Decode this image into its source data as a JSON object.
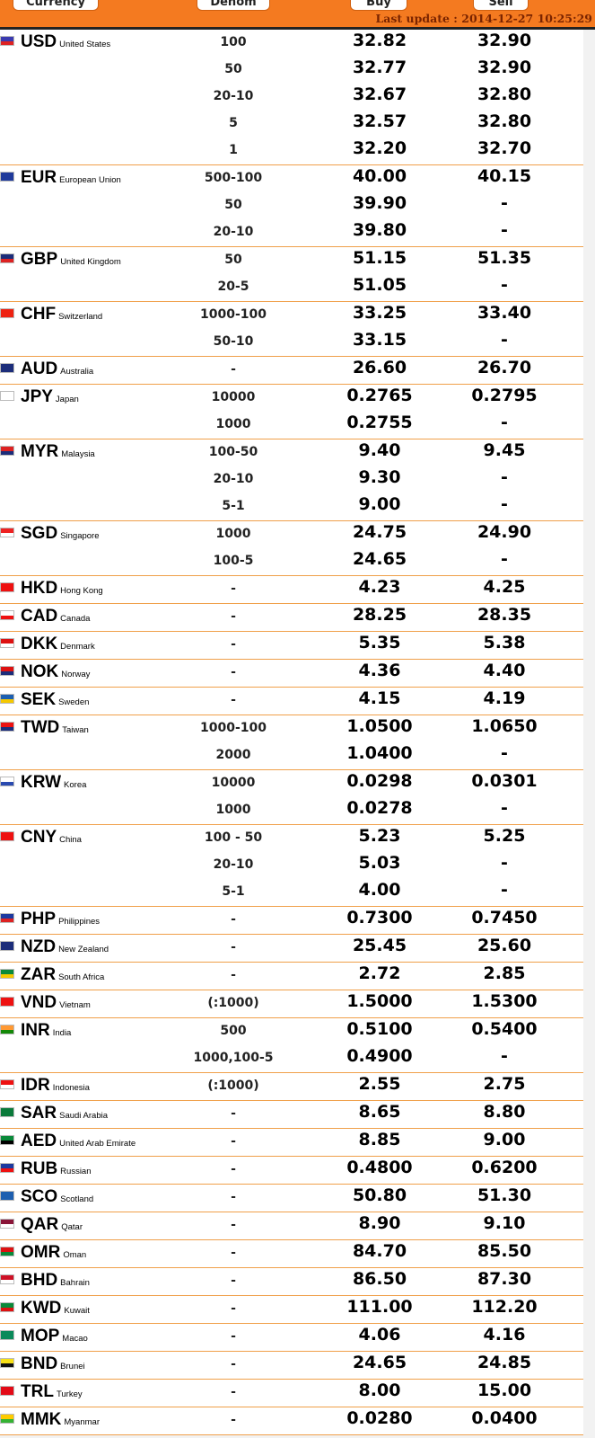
{
  "header": {
    "col_currency": "Currency",
    "col_denom": "Denom",
    "col_buy": "Buy",
    "col_sell": "Sell",
    "last_update": "Last update : 2014-12-27 10:25:29"
  },
  "groups": [
    {
      "code": "USD",
      "country": "United States",
      "flag": {
        "icon": "us-flag-icon",
        "bg": "#3b3bb0",
        "stripe": "#d22"
      },
      "rows": [
        {
          "denom": "100",
          "buy": "32.82",
          "sell": "32.90"
        },
        {
          "denom": "50",
          "buy": "32.77",
          "sell": "32.90"
        },
        {
          "denom": "20-10",
          "buy": "32.67",
          "sell": "32.80"
        },
        {
          "denom": "5",
          "buy": "32.57",
          "sell": "32.80"
        },
        {
          "denom": "1",
          "buy": "32.20",
          "sell": "32.70"
        }
      ]
    },
    {
      "code": "EUR",
      "country": "European Union",
      "flag": {
        "icon": "eu-flag-icon",
        "bg": "#1f3a9b",
        "stripe": "#1f3a9b"
      },
      "rows": [
        {
          "denom": "500-100",
          "buy": "40.00",
          "sell": "40.15"
        },
        {
          "denom": "50",
          "buy": "39.90",
          "sell": "-"
        },
        {
          "denom": "20-10",
          "buy": "39.80",
          "sell": "-"
        }
      ]
    },
    {
      "code": "GBP",
      "country": "United Kingdom",
      "flag": {
        "icon": "uk-flag-icon",
        "bg": "#1c2d7a",
        "stripe": "#d22"
      },
      "rows": [
        {
          "denom": "50",
          "buy": "51.15",
          "sell": "51.35"
        },
        {
          "denom": "20-5",
          "buy": "51.05",
          "sell": "-"
        }
      ]
    },
    {
      "code": "CHF",
      "country": "Switzerland",
      "flag": {
        "icon": "swiss-flag-icon",
        "bg": "#e21",
        "stripe": "#e21"
      },
      "rows": [
        {
          "denom": "1000-100",
          "buy": "33.25",
          "sell": "33.40"
        },
        {
          "denom": "50-10",
          "buy": "33.15",
          "sell": "-"
        }
      ]
    },
    {
      "code": "AUD",
      "country": "Australia",
      "flag": {
        "icon": "australia-flag-icon",
        "bg": "#1c2d7a",
        "stripe": "#1c2d7a"
      },
      "rows": [
        {
          "denom": "-",
          "buy": "26.60",
          "sell": "26.70"
        }
      ]
    },
    {
      "code": "JPY",
      "country": "Japan",
      "flag": {
        "icon": "japan-flag-icon",
        "bg": "#ffffff",
        "stripe": "#ffffff"
      },
      "rows": [
        {
          "denom": "10000",
          "buy": "0.2765",
          "sell": "0.2795"
        },
        {
          "denom": "1000",
          "buy": "0.2755",
          "sell": "-"
        }
      ]
    },
    {
      "code": "MYR",
      "country": "Malaysia",
      "flag": {
        "icon": "malaysia-flag-icon",
        "bg": "#d22",
        "stripe": "#1c2d7a"
      },
      "rows": [
        {
          "denom": "100-50",
          "buy": "9.40",
          "sell": "9.45"
        },
        {
          "denom": "20-10",
          "buy": "9.30",
          "sell": "-"
        },
        {
          "denom": "5-1",
          "buy": "9.00",
          "sell": "-"
        }
      ]
    },
    {
      "code": "SGD",
      "country": "Singapore",
      "flag": {
        "icon": "singapore-flag-icon",
        "bg": "#e22",
        "stripe": "#ffffff"
      },
      "rows": [
        {
          "denom": "1000",
          "buy": "24.75",
          "sell": "24.90"
        },
        {
          "denom": "100-5",
          "buy": "24.65",
          "sell": "-"
        }
      ]
    },
    {
      "code": "HKD",
      "country": "Hong Kong",
      "flag": {
        "icon": "hongkong-flag-icon",
        "bg": "#e11",
        "stripe": "#e11"
      },
      "rows": [
        {
          "denom": "-",
          "buy": "4.23",
          "sell": "4.25"
        }
      ]
    },
    {
      "code": "CAD",
      "country": "Canada",
      "flag": {
        "icon": "canada-flag-icon",
        "bg": "#ffffff",
        "stripe": "#e11"
      },
      "rows": [
        {
          "denom": "-",
          "buy": "28.25",
          "sell": "28.35"
        }
      ]
    },
    {
      "code": "DKK",
      "country": "Denmark",
      "flag": {
        "icon": "denmark-flag-icon",
        "bg": "#d11",
        "stripe": "#ffffff"
      },
      "rows": [
        {
          "denom": "-",
          "buy": "5.35",
          "sell": "5.38"
        }
      ]
    },
    {
      "code": "NOK",
      "country": "Norway",
      "flag": {
        "icon": "norway-flag-icon",
        "bg": "#d11",
        "stripe": "#1c2d7a"
      },
      "rows": [
        {
          "denom": "-",
          "buy": "4.36",
          "sell": "4.40"
        }
      ]
    },
    {
      "code": "SEK",
      "country": "Sweden",
      "flag": {
        "icon": "sweden-flag-icon",
        "bg": "#1d5fb0",
        "stripe": "#f5c800"
      },
      "rows": [
        {
          "denom": "-",
          "buy": "4.15",
          "sell": "4.19"
        }
      ]
    },
    {
      "code": "TWD",
      "country": "Taiwan",
      "flag": {
        "icon": "taiwan-flag-icon",
        "bg": "#e11",
        "stripe": "#1c2d7a"
      },
      "rows": [
        {
          "denom": "1000-100",
          "buy": "1.0500",
          "sell": "1.0650"
        },
        {
          "denom": "2000",
          "buy": "1.0400",
          "sell": "-"
        }
      ]
    },
    {
      "code": "KRW",
      "country": "Korea",
      "flag": {
        "icon": "korea-flag-icon",
        "bg": "#ffffff",
        "stripe": "#2a4ab0"
      },
      "rows": [
        {
          "denom": "10000",
          "buy": "0.0298",
          "sell": "0.0301"
        },
        {
          "denom": "1000",
          "buy": "0.0278",
          "sell": "-"
        }
      ]
    },
    {
      "code": "CNY",
      "country": "China",
      "flag": {
        "icon": "china-flag-icon",
        "bg": "#e11",
        "stripe": "#e11"
      },
      "rows": [
        {
          "denom": "100 - 50",
          "buy": "5.23",
          "sell": "5.25"
        },
        {
          "denom": "20-10",
          "buy": "5.03",
          "sell": "-"
        },
        {
          "denom": "5-1",
          "buy": "4.00",
          "sell": "-"
        }
      ]
    },
    {
      "code": "PHP",
      "country": "Philippines",
      "flag": {
        "icon": "philippines-flag-icon",
        "bg": "#1c3aa0",
        "stripe": "#d22"
      },
      "rows": [
        {
          "denom": "-",
          "buy": "0.7300",
          "sell": "0.7450"
        }
      ]
    },
    {
      "code": "NZD",
      "country": "New Zealand",
      "flag": {
        "icon": "newzealand-flag-icon",
        "bg": "#1c2d7a",
        "stripe": "#1c2d7a"
      },
      "rows": [
        {
          "denom": "-",
          "buy": "25.45",
          "sell": "25.60"
        }
      ]
    },
    {
      "code": "ZAR",
      "country": "South Africa",
      "flag": {
        "icon": "southafrica-flag-icon",
        "bg": "#0a8a3a",
        "stripe": "#f5c800"
      },
      "rows": [
        {
          "denom": "-",
          "buy": "2.72",
          "sell": "2.85"
        }
      ]
    },
    {
      "code": "VND",
      "country": "Vietnam",
      "flag": {
        "icon": "vietnam-flag-icon",
        "bg": "#e11",
        "stripe": "#e11"
      },
      "rows": [
        {
          "denom": "(:1000)",
          "buy": "1.5000",
          "sell": "1.5300"
        }
      ]
    },
    {
      "code": "INR",
      "country": "India",
      "flag": {
        "icon": "india-flag-icon",
        "bg": "#ff9933",
        "stripe": "#138808"
      },
      "rows": [
        {
          "denom": "500",
          "buy": "0.5100",
          "sell": "0.5400"
        },
        {
          "denom": "1000,100-5",
          "buy": "0.4900",
          "sell": "-"
        }
      ]
    },
    {
      "code": "IDR",
      "country": "Indonesia",
      "flag": {
        "icon": "indonesia-flag-icon",
        "bg": "#e11",
        "stripe": "#ffffff"
      },
      "rows": [
        {
          "denom": "(:1000)",
          "buy": "2.55",
          "sell": "2.75"
        }
      ]
    },
    {
      "code": "SAR",
      "country": "Saudi Arabia",
      "flag": {
        "icon": "saudi-flag-icon",
        "bg": "#0a7a3a",
        "stripe": "#0a7a3a"
      },
      "rows": [
        {
          "denom": "-",
          "buy": "8.65",
          "sell": "8.80"
        }
      ]
    },
    {
      "code": "AED",
      "country": "United Arab Emirate",
      "flag": {
        "icon": "uae-flag-icon",
        "bg": "#0a8a3a",
        "stripe": "#000000"
      },
      "rows": [
        {
          "denom": "-",
          "buy": "8.85",
          "sell": "9.00"
        }
      ]
    },
    {
      "code": "RUB",
      "country": "Russian",
      "flag": {
        "icon": "russia-flag-icon",
        "bg": "#1c3aa0",
        "stripe": "#e11"
      },
      "rows": [
        {
          "denom": "-",
          "buy": "0.4800",
          "sell": "0.6200"
        }
      ]
    },
    {
      "code": "SCO",
      "country": "Scotland",
      "flag": {
        "icon": "scotland-flag-icon",
        "bg": "#1d5fb0",
        "stripe": "#1d5fb0"
      },
      "rows": [
        {
          "denom": "-",
          "buy": "50.80",
          "sell": "51.30"
        }
      ]
    },
    {
      "code": "QAR",
      "country": "Qatar",
      "flag": {
        "icon": "qatar-flag-icon",
        "bg": "#8a1538",
        "stripe": "#ffffff"
      },
      "rows": [
        {
          "denom": "-",
          "buy": "8.90",
          "sell": "9.10"
        }
      ]
    },
    {
      "code": "OMR",
      "country": "Oman",
      "flag": {
        "icon": "oman-flag-icon",
        "bg": "#d11",
        "stripe": "#0a8a3a"
      },
      "rows": [
        {
          "denom": "-",
          "buy": "84.70",
          "sell": "85.50"
        }
      ]
    },
    {
      "code": "BHD",
      "country": "Bahrain",
      "flag": {
        "icon": "bahrain-flag-icon",
        "bg": "#ce1126",
        "stripe": "#ffffff"
      },
      "rows": [
        {
          "denom": "-",
          "buy": "86.50",
          "sell": "87.30"
        }
      ]
    },
    {
      "code": "KWD",
      "country": "Kuwait",
      "flag": {
        "icon": "kuwait-flag-icon",
        "bg": "#0a8a3a",
        "stripe": "#d11"
      },
      "rows": [
        {
          "denom": "-",
          "buy": "111.00",
          "sell": "112.20"
        }
      ]
    },
    {
      "code": "MOP",
      "country": "Macao",
      "flag": {
        "icon": "macao-flag-icon",
        "bg": "#0a8a5a",
        "stripe": "#0a8a5a"
      },
      "rows": [
        {
          "denom": "-",
          "buy": "4.06",
          "sell": "4.16"
        }
      ]
    },
    {
      "code": "BND",
      "country": "Brunei",
      "flag": {
        "icon": "brunei-flag-icon",
        "bg": "#f7e017",
        "stripe": "#111111"
      },
      "rows": [
        {
          "denom": "-",
          "buy": "24.65",
          "sell": "24.85"
        }
      ]
    },
    {
      "code": "TRL",
      "country": "Turkey",
      "flag": {
        "icon": "turkey-flag-icon",
        "bg": "#e30a17",
        "stripe": "#e30a17"
      },
      "rows": [
        {
          "denom": "-",
          "buy": "8.00",
          "sell": "15.00"
        }
      ]
    },
    {
      "code": "MMK",
      "country": "Myanmar",
      "flag": {
        "icon": "myanmar-flag-icon",
        "bg": "#fecb00",
        "stripe": "#34b233"
      },
      "rows": [
        {
          "denom": "-",
          "buy": "0.0280",
          "sell": "0.0400"
        }
      ]
    }
  ]
}
